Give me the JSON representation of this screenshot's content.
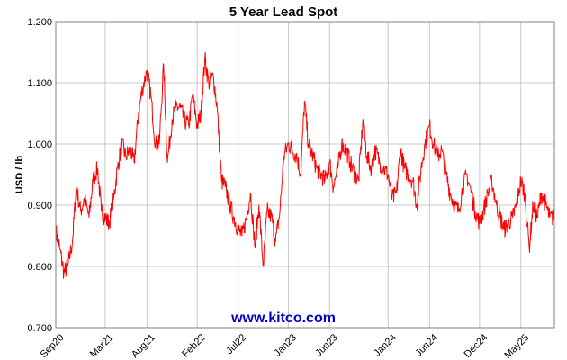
{
  "chart_data": {
    "type": "line",
    "title": "5 Year Lead Spot",
    "ylabel": "USD / lb",
    "watermark": "www.kitco.com",
    "ylim": [
      0.7,
      1.2
    ],
    "yticks": [
      "0.700",
      "0.800",
      "0.900",
      "1.000",
      "1.100",
      "1.200"
    ],
    "xlim": [
      "2020-09-01",
      "2025-09-01"
    ],
    "xticks": [
      {
        "label": "Sep20",
        "date": "2020-09-01"
      },
      {
        "label": "Mar21",
        "date": "2021-03-01"
      },
      {
        "label": "Aug21",
        "date": "2021-08-01"
      },
      {
        "label": "Feb22",
        "date": "2022-02-01"
      },
      {
        "label": "Jul22",
        "date": "2022-07-01"
      },
      {
        "label": "Jan23",
        "date": "2023-01-01"
      },
      {
        "label": "Jun23",
        "date": "2023-06-01"
      },
      {
        "label": "Jan24",
        "date": "2024-01-01"
      },
      {
        "label": "Jun24",
        "date": "2024-06-01"
      },
      {
        "label": "Dec24",
        "date": "2024-12-01"
      },
      {
        "label": "May25",
        "date": "2025-05-01"
      }
    ],
    "grid": true,
    "line_color": "#ff0000",
    "series": [
      {
        "x": [
          "2020-09-01",
          "2020-09-15",
          "2020-10-01",
          "2020-10-15",
          "2020-11-01",
          "2020-11-15",
          "2020-12-01",
          "2020-12-15",
          "2021-01-01",
          "2021-01-15",
          "2021-02-01",
          "2021-02-15",
          "2021-03-01",
          "2021-03-15",
          "2021-04-01",
          "2021-04-15",
          "2021-05-01",
          "2021-05-15",
          "2021-06-01",
          "2021-06-15",
          "2021-07-01",
          "2021-07-15",
          "2021-08-01",
          "2021-08-15",
          "2021-09-01",
          "2021-09-15",
          "2021-10-01",
          "2021-10-15",
          "2021-11-01",
          "2021-11-15",
          "2021-12-01",
          "2021-12-15",
          "2022-01-01",
          "2022-01-15",
          "2022-02-01",
          "2022-02-15",
          "2022-03-01",
          "2022-03-15",
          "2022-04-01",
          "2022-04-15",
          "2022-05-01",
          "2022-05-15",
          "2022-06-01",
          "2022-06-15",
          "2022-07-01",
          "2022-07-15",
          "2022-08-01",
          "2022-08-15",
          "2022-09-01",
          "2022-09-15",
          "2022-10-01",
          "2022-10-15",
          "2022-11-01",
          "2022-11-15",
          "2022-12-01",
          "2022-12-15",
          "2023-01-01",
          "2023-01-15",
          "2023-02-01",
          "2023-02-15",
          "2023-03-01",
          "2023-03-15",
          "2023-04-01",
          "2023-04-15",
          "2023-05-01",
          "2023-05-15",
          "2023-06-01",
          "2023-06-15",
          "2023-07-01",
          "2023-07-15",
          "2023-08-01",
          "2023-08-15",
          "2023-09-01",
          "2023-09-15",
          "2023-10-01",
          "2023-10-15",
          "2023-11-01",
          "2023-11-15",
          "2023-12-01",
          "2023-12-15",
          "2024-01-01",
          "2024-01-15",
          "2024-02-01",
          "2024-02-15",
          "2024-03-01",
          "2024-03-15",
          "2024-04-01",
          "2024-04-15",
          "2024-05-01",
          "2024-05-15",
          "2024-06-01",
          "2024-06-15",
          "2024-07-01",
          "2024-07-15",
          "2024-08-01",
          "2024-08-15",
          "2024-09-01",
          "2024-09-15",
          "2024-10-01",
          "2024-10-15",
          "2024-11-01",
          "2024-11-15",
          "2024-12-01",
          "2024-12-15",
          "2025-01-01",
          "2025-01-15",
          "2025-02-01",
          "2025-02-15",
          "2025-03-01",
          "2025-03-15",
          "2025-04-01",
          "2025-04-15",
          "2025-05-01",
          "2025-05-15",
          "2025-06-01",
          "2025-06-15",
          "2025-07-01",
          "2025-07-15",
          "2025-08-01",
          "2025-08-15",
          "2025-09-01"
        ],
        "y": [
          0.86,
          0.83,
          0.79,
          0.8,
          0.84,
          0.93,
          0.89,
          0.91,
          0.88,
          0.94,
          0.96,
          0.89,
          0.88,
          0.87,
          0.91,
          0.96,
          1.0,
          0.98,
          0.99,
          0.97,
          1.05,
          1.09,
          1.12,
          1.08,
          1.0,
          1.0,
          1.13,
          0.97,
          1.04,
          1.06,
          1.06,
          1.04,
          1.03,
          1.08,
          1.03,
          1.05,
          1.14,
          1.1,
          1.11,
          1.06,
          0.94,
          0.93,
          0.9,
          0.88,
          0.86,
          0.85,
          0.88,
          0.92,
          0.83,
          0.9,
          0.8,
          0.89,
          0.88,
          0.84,
          0.89,
          0.98,
          1.0,
          0.99,
          0.98,
          0.95,
          1.07,
          1.0,
          0.98,
          0.96,
          0.95,
          0.94,
          0.97,
          0.93,
          0.96,
          1.0,
          0.99,
          0.97,
          0.95,
          0.94,
          1.04,
          0.98,
          0.96,
          0.99,
          0.97,
          0.96,
          0.95,
          0.91,
          0.92,
          0.99,
          0.96,
          0.95,
          0.94,
          0.9,
          0.96,
          1.0,
          1.03,
          1.0,
          0.98,
          0.99,
          0.95,
          0.92,
          0.9,
          0.89,
          0.93,
          0.95,
          0.92,
          0.89,
          0.87,
          0.89,
          0.92,
          0.94,
          0.9,
          0.88,
          0.86,
          0.87,
          0.88,
          0.9,
          0.94,
          0.92,
          0.83,
          0.9,
          0.88,
          0.92,
          0.9,
          0.88,
          0.88
        ]
      }
    ]
  }
}
